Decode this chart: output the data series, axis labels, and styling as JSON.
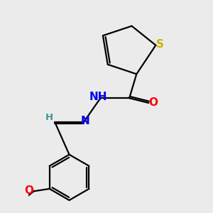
{
  "background_color": "#ebebeb",
  "atom_colors": {
    "S": "#c8b400",
    "O": "#ff0000",
    "N": "#0000ee",
    "H_color": "#3a9898",
    "C": "#000000"
  },
  "bond_color": "#000000",
  "bond_width": 1.6,
  "font_size_atoms": 11,
  "font_size_H": 9.5
}
